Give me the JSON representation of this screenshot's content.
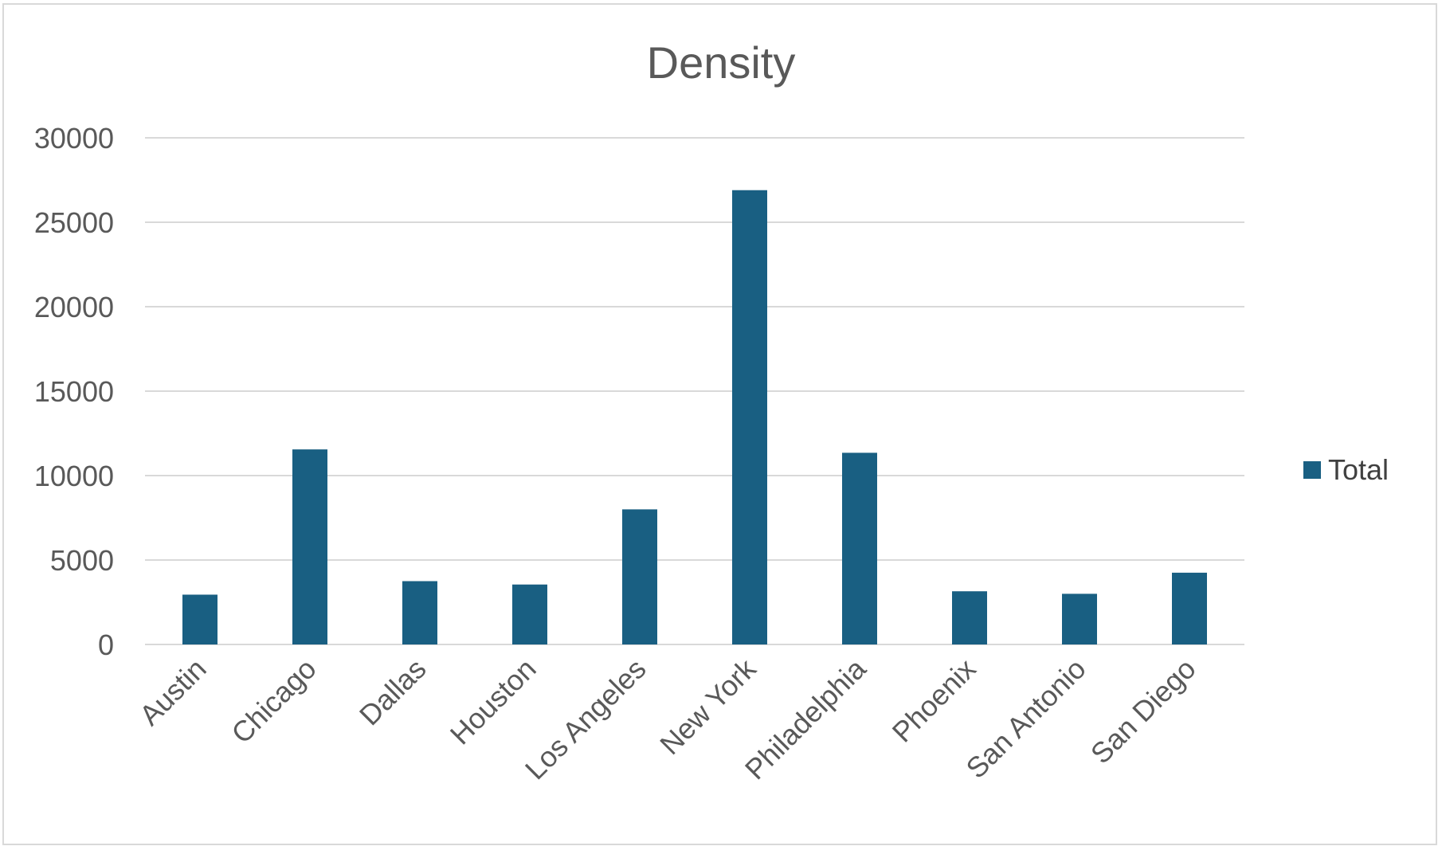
{
  "chart_data": {
    "type": "bar",
    "title": "Density",
    "categories": [
      "Austin",
      "Chicago",
      "Dallas",
      "Houston",
      "Los Angeles",
      "New York",
      "Philadelphia",
      "Phoenix",
      "San Antonio",
      "San Diego"
    ],
    "series": [
      {
        "name": "Total",
        "color": "#195f82",
        "values": [
          2950,
          11550,
          3750,
          3550,
          8000,
          26900,
          11350,
          3150,
          3000,
          4250
        ]
      }
    ],
    "yticks": [
      "0",
      "5000",
      "10000",
      "15000",
      "20000",
      "25000",
      "30000"
    ],
    "ylim": [
      0,
      30000
    ],
    "grid": true,
    "legend_position": "right",
    "xlabel": "",
    "ylabel": ""
  }
}
